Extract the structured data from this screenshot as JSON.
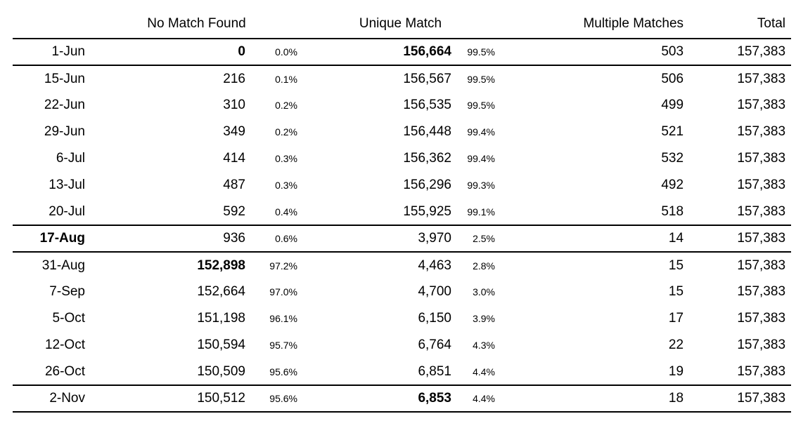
{
  "colors": {
    "background": "#ffffff",
    "text": "#000000",
    "rule": "#000000"
  },
  "table": {
    "headers": {
      "date": "",
      "no_match_found": "No Match Found",
      "unique_match": "Unique Match",
      "multiple_matches": "Multiple Matches",
      "total": "Total"
    },
    "rows": [
      {
        "date": "1-Jun",
        "nm": "0",
        "nm_pct": "0.0%",
        "um": "156,664",
        "um_pct": "99.5%",
        "mm": "503",
        "total": "157,383",
        "bold": [
          "nm",
          "um"
        ],
        "rule_below": true
      },
      {
        "date": "15-Jun",
        "nm": "216",
        "nm_pct": "0.1%",
        "um": "156,567",
        "um_pct": "99.5%",
        "mm": "506",
        "total": "157,383",
        "bold": [],
        "rule_below": false
      },
      {
        "date": "22-Jun",
        "nm": "310",
        "nm_pct": "0.2%",
        "um": "156,535",
        "um_pct": "99.5%",
        "mm": "499",
        "total": "157,383",
        "bold": [],
        "rule_below": false
      },
      {
        "date": "29-Jun",
        "nm": "349",
        "nm_pct": "0.2%",
        "um": "156,448",
        "um_pct": "99.4%",
        "mm": "521",
        "total": "157,383",
        "bold": [],
        "rule_below": false
      },
      {
        "date": "6-Jul",
        "nm": "414",
        "nm_pct": "0.3%",
        "um": "156,362",
        "um_pct": "99.4%",
        "mm": "532",
        "total": "157,383",
        "bold": [],
        "rule_below": false
      },
      {
        "date": "13-Jul",
        "nm": "487",
        "nm_pct": "0.3%",
        "um": "156,296",
        "um_pct": "99.3%",
        "mm": "492",
        "total": "157,383",
        "bold": [],
        "rule_below": false
      },
      {
        "date": "20-Jul",
        "nm": "592",
        "nm_pct": "0.4%",
        "um": "155,925",
        "um_pct": "99.1%",
        "mm": "518",
        "total": "157,383",
        "bold": [],
        "rule_below": true
      },
      {
        "date": "17-Aug",
        "nm": "936",
        "nm_pct": "0.6%",
        "um": "3,970",
        "um_pct": "2.5%",
        "mm": "14",
        "total": "157,383",
        "bold": [
          "date"
        ],
        "rule_below": true
      },
      {
        "date": "31-Aug",
        "nm": "152,898",
        "nm_pct": "97.2%",
        "um": "4,463",
        "um_pct": "2.8%",
        "mm": "15",
        "total": "157,383",
        "bold": [
          "nm"
        ],
        "rule_below": false
      },
      {
        "date": "7-Sep",
        "nm": "152,664",
        "nm_pct": "97.0%",
        "um": "4,700",
        "um_pct": "3.0%",
        "mm": "15",
        "total": "157,383",
        "bold": [],
        "rule_below": false
      },
      {
        "date": "5-Oct",
        "nm": "151,198",
        "nm_pct": "96.1%",
        "um": "6,150",
        "um_pct": "3.9%",
        "mm": "17",
        "total": "157,383",
        "bold": [],
        "rule_below": false
      },
      {
        "date": "12-Oct",
        "nm": "150,594",
        "nm_pct": "95.7%",
        "um": "6,764",
        "um_pct": "4.3%",
        "mm": "22",
        "total": "157,383",
        "bold": [],
        "rule_below": false
      },
      {
        "date": "26-Oct",
        "nm": "150,509",
        "nm_pct": "95.6%",
        "um": "6,851",
        "um_pct": "4.4%",
        "mm": "19",
        "total": "157,383",
        "bold": [],
        "rule_below": true
      },
      {
        "date": "2-Nov",
        "nm": "150,512",
        "nm_pct": "95.6%",
        "um": "6,853",
        "um_pct": "4.4%",
        "mm": "18",
        "total": "157,383",
        "bold": [
          "um"
        ],
        "rule_below": true
      }
    ]
  }
}
